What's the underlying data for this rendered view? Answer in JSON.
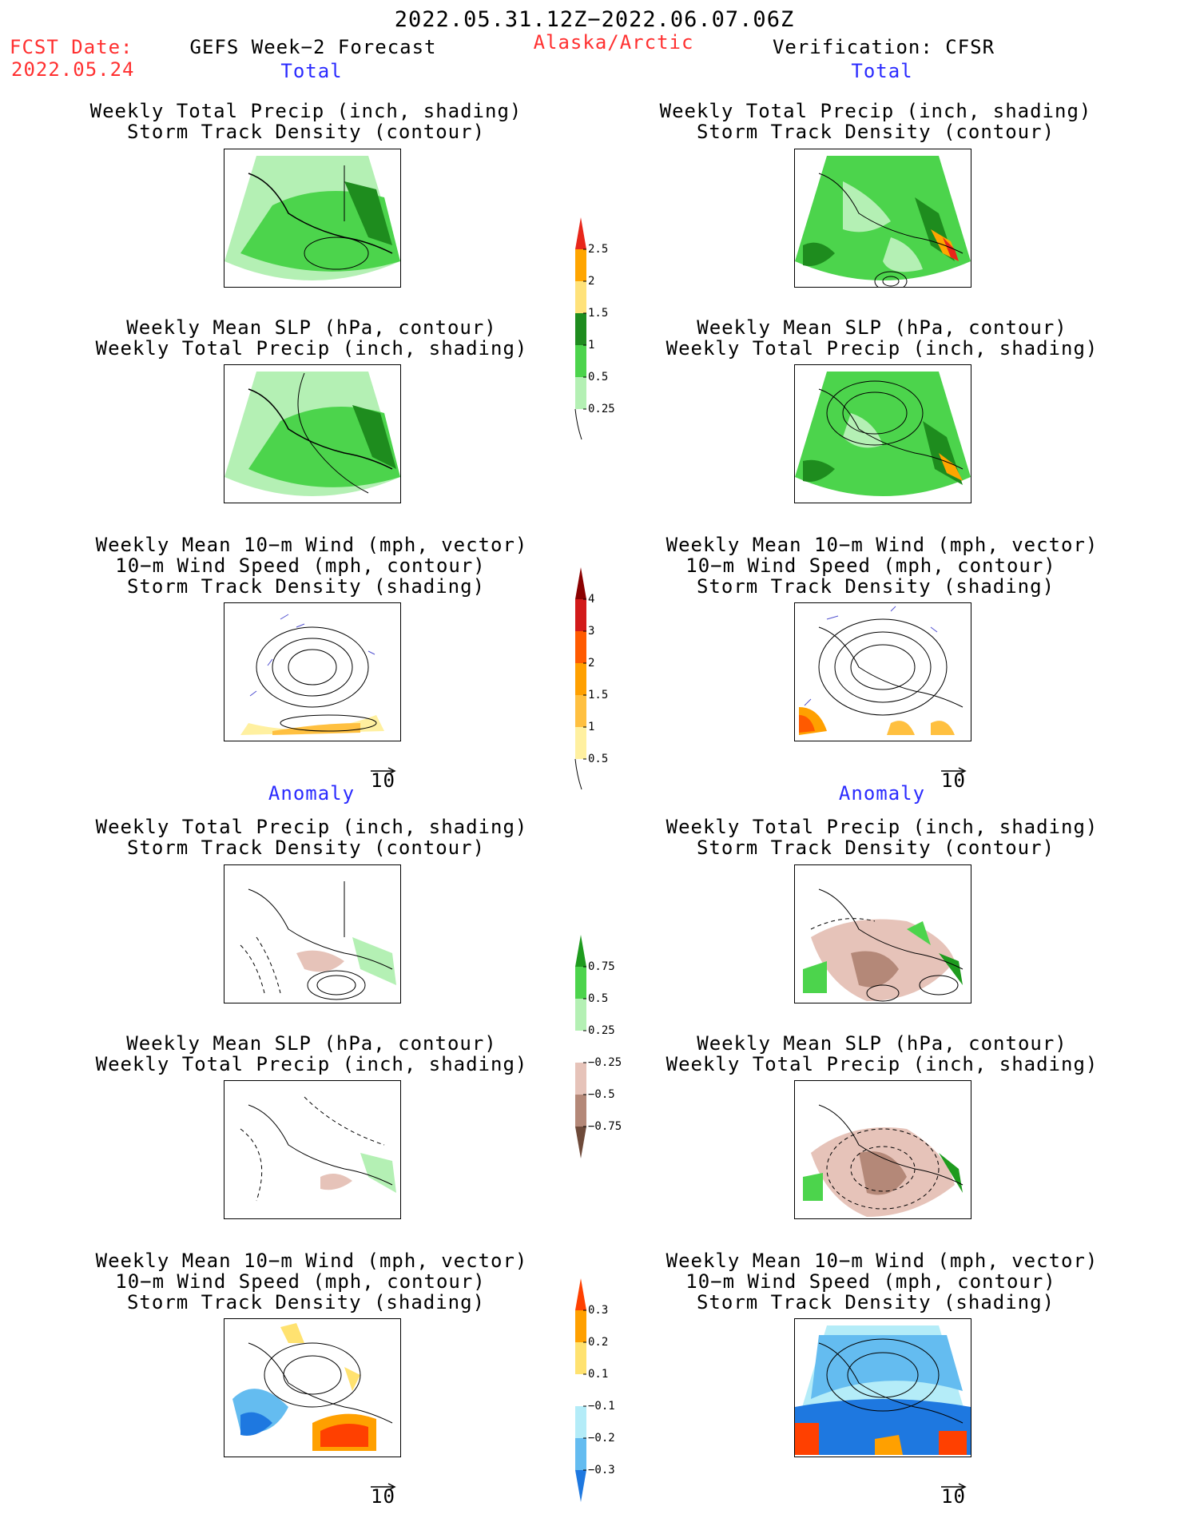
{
  "header": {
    "period": "2022.05.31.12Z−2022.06.07.06Z",
    "fcst_label": "FCST Date:",
    "fcst_date": "2022.05.24",
    "left_title": "GEFS Week−2 Forecast",
    "region": "Alaska/Arctic",
    "right_title": "Verification: CFSR"
  },
  "sections": {
    "total": "Total",
    "anomaly": "Anomaly"
  },
  "panel_titles": {
    "precip_track": [
      "Weekly Total Precip (inch, shading)",
      "Storm Track Density (contour)"
    ],
    "slp_precip": [
      "Weekly Mean SLP (hPa, contour)",
      "Weekly Total Precip (inch, shading)"
    ],
    "wind_track": [
      "Weekly Mean 10−m Wind (mph, vector)",
      "10−m Wind Speed (mph, contour)",
      "Storm Track Density (shading)"
    ]
  },
  "vector_reference": "10",
  "colorbars": {
    "precip_total": {
      "labels": [
        "2.5",
        "2",
        "1.5",
        "1",
        "0.5",
        "0.25"
      ],
      "colors": [
        "#e8261a",
        "#ffa500",
        "#ffe27a",
        "#1e8c1e",
        "#4cd44c",
        "#b4f0b4"
      ]
    },
    "track_total": {
      "labels": [
        "4",
        "3",
        "2",
        "1.5",
        "1",
        "0.5"
      ],
      "colors": [
        "#8b0000",
        "#d21a1a",
        "#ff5a00",
        "#ffa000",
        "#ffc040",
        "#fff0a0"
      ]
    },
    "precip_anom": {
      "labels": [
        "0.75",
        "0.5",
        "0.25",
        "−0.25",
        "−0.5",
        "−0.75"
      ],
      "colors": [
        "#1e9b1e",
        "#4cd44c",
        "#b4f0b4",
        "#ffffff",
        "#e6c3b9",
        "#b48878",
        "#6e4a3a"
      ]
    },
    "track_anom": {
      "labels": [
        "0.3",
        "0.2",
        "0.1",
        "−0.1",
        "−0.2",
        "−0.3"
      ],
      "colors": [
        "#ff4000",
        "#ffa000",
        "#ffe270",
        "#ffffff",
        "#b4ecf8",
        "#64bcf0",
        "#1e78e0"
      ]
    }
  }
}
